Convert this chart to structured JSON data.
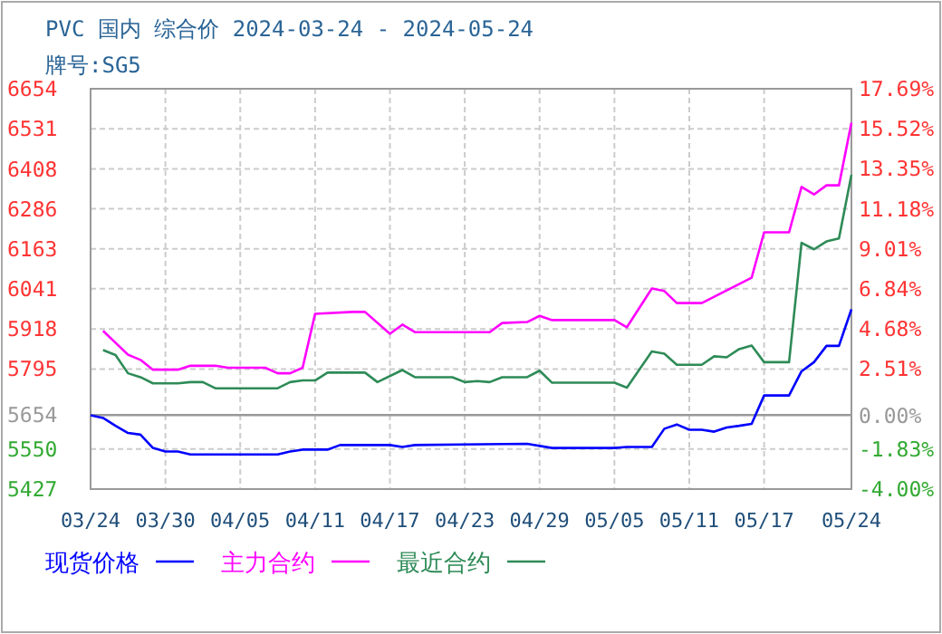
{
  "chart_data": {
    "type": "line",
    "title": "PVC 国内 综合价 2024-03-24 - 2024-05-24",
    "subtitle": "牌号:SG5",
    "xlim": [
      "2024-03-24",
      "2024-05-24"
    ],
    "xticks": [
      {
        "value": "2024-03-24",
        "label": "03/24"
      },
      {
        "value": "2024-03-30",
        "label": "03/30"
      },
      {
        "value": "2024-04-05",
        "label": "04/05"
      },
      {
        "value": "2024-04-11",
        "label": "04/11"
      },
      {
        "value": "2024-04-17",
        "label": "04/17"
      },
      {
        "value": "2024-04-23",
        "label": "04/23"
      },
      {
        "value": "2024-04-29",
        "label": "04/29"
      },
      {
        "value": "2024-05-05",
        "label": "05/05"
      },
      {
        "value": "2024-05-11",
        "label": "05/11"
      },
      {
        "value": "2024-05-17",
        "label": "05/17"
      },
      {
        "value": "2024-05-24",
        "label": "05/24"
      }
    ],
    "ylim": [
      5427,
      6654
    ],
    "yticks": [
      5427,
      5550,
      5654,
      5795,
      5918,
      6041,
      6163,
      6286,
      6408,
      6531,
      6654
    ],
    "y2lim": [
      -4.0,
      17.69
    ],
    "y2ticks": [
      {
        "value": -4.0,
        "label": "-4.00%"
      },
      {
        "value": -1.83,
        "label": "-1.83%"
      },
      {
        "value": 0,
        "label": "0.00%"
      },
      {
        "value": 2.51,
        "label": "2.51%"
      },
      {
        "value": 4.68,
        "label": "4.68%"
      },
      {
        "value": 6.84,
        "label": "6.84%"
      },
      {
        "value": 9.01,
        "label": "9.01%"
      },
      {
        "value": 11.18,
        "label": "11.18%"
      },
      {
        "value": 13.35,
        "label": "13.35%"
      },
      {
        "value": 15.52,
        "label": "15.52%"
      },
      {
        "value": 17.69,
        "label": "17.69%"
      }
    ],
    "grid": true,
    "legend": "bottom",
    "ref_lines": [
      {
        "axis": "y",
        "value": 5654,
        "color": "#999999"
      }
    ],
    "series": [
      {
        "name": "现货价格",
        "color": "#0000ff",
        "x": [
          "2024-03-24",
          "2024-03-25",
          "2024-03-26",
          "2024-03-27",
          "2024-03-28",
          "2024-03-29",
          "2024-03-30",
          "2024-03-31",
          "2024-04-01",
          "2024-04-08",
          "2024-04-09",
          "2024-04-10",
          "2024-04-12",
          "2024-04-13",
          "2024-04-17",
          "2024-04-18",
          "2024-04-19",
          "2024-04-28",
          "2024-04-30",
          "2024-05-05",
          "2024-05-06",
          "2024-05-08",
          "2024-05-09",
          "2024-05-10",
          "2024-05-11",
          "2024-05-12",
          "2024-05-13",
          "2024-05-14",
          "2024-05-15",
          "2024-05-16",
          "2024-05-17",
          "2024-05-19",
          "2024-05-20",
          "2024-05-21",
          "2024-05-22",
          "2024-05-23",
          "2024-05-24"
        ],
        "values": [
          5653,
          5645,
          5621,
          5599,
          5594,
          5553,
          5542,
          5542,
          5533,
          5533,
          5542,
          5548,
          5548,
          5562,
          5562,
          5556,
          5562,
          5566,
          5553,
          5553,
          5556,
          5556,
          5612,
          5625,
          5609,
          5609,
          5603,
          5616,
          5621,
          5627,
          5714,
          5714,
          5788,
          5816,
          5866,
          5866,
          5978
        ]
      },
      {
        "name": "主力合约",
        "color": "#ff00ff",
        "x": [
          "2024-03-25",
          "2024-03-27",
          "2024-03-28",
          "2024-03-29",
          "2024-03-31",
          "2024-04-01",
          "2024-04-03",
          "2024-04-04",
          "2024-04-07",
          "2024-04-08",
          "2024-04-09",
          "2024-04-10",
          "2024-04-11",
          "2024-04-14",
          "2024-04-15",
          "2024-04-17",
          "2024-04-18",
          "2024-04-19",
          "2024-04-25",
          "2024-04-26",
          "2024-04-28",
          "2024-04-29",
          "2024-04-30",
          "2024-05-05",
          "2024-05-06",
          "2024-05-08",
          "2024-05-09",
          "2024-05-10",
          "2024-05-12",
          "2024-05-16",
          "2024-05-17",
          "2024-05-19",
          "2024-05-20",
          "2024-05-21",
          "2024-05-22",
          "2024-05-23",
          "2024-05-24"
        ],
        "values": [
          5912,
          5839,
          5823,
          5793,
          5793,
          5805,
          5805,
          5799,
          5799,
          5782,
          5782,
          5799,
          5964,
          5970,
          5970,
          5903,
          5931,
          5908,
          5908,
          5936,
          5939,
          5958,
          5945,
          5945,
          5923,
          6042,
          6034,
          5997,
          5997,
          6075,
          6214,
          6214,
          6353,
          6330,
          6358,
          6358,
          6550
        ]
      },
      {
        "name": "最近合约",
        "color": "#2e8b57",
        "x": [
          "2024-03-25",
          "2024-03-26",
          "2024-03-27",
          "2024-03-28",
          "2024-03-29",
          "2024-03-31",
          "2024-04-01",
          "2024-04-02",
          "2024-04-03",
          "2024-04-08",
          "2024-04-09",
          "2024-04-10",
          "2024-04-11",
          "2024-04-12",
          "2024-04-15",
          "2024-04-16",
          "2024-04-18",
          "2024-04-19",
          "2024-04-22",
          "2024-04-23",
          "2024-04-24",
          "2024-04-25",
          "2024-04-26",
          "2024-04-28",
          "2024-04-29",
          "2024-04-30",
          "2024-05-05",
          "2024-05-06",
          "2024-05-08",
          "2024-05-09",
          "2024-05-10",
          "2024-05-12",
          "2024-05-13",
          "2024-05-14",
          "2024-05-15",
          "2024-05-16",
          "2024-05-17",
          "2024-05-19",
          "2024-05-20",
          "2024-05-21",
          "2024-05-22",
          "2024-05-23",
          "2024-05-24"
        ],
        "values": [
          5853,
          5838,
          5782,
          5770,
          5751,
          5751,
          5755,
          5755,
          5736,
          5736,
          5755,
          5760,
          5760,
          5784,
          5784,
          5755,
          5792,
          5770,
          5770,
          5755,
          5758,
          5755,
          5770,
          5770,
          5790,
          5753,
          5753,
          5738,
          5849,
          5842,
          5808,
          5808,
          5834,
          5831,
          5856,
          5867,
          5816,
          5816,
          6182,
          6162,
          6186,
          6195,
          6390
        ]
      }
    ]
  }
}
